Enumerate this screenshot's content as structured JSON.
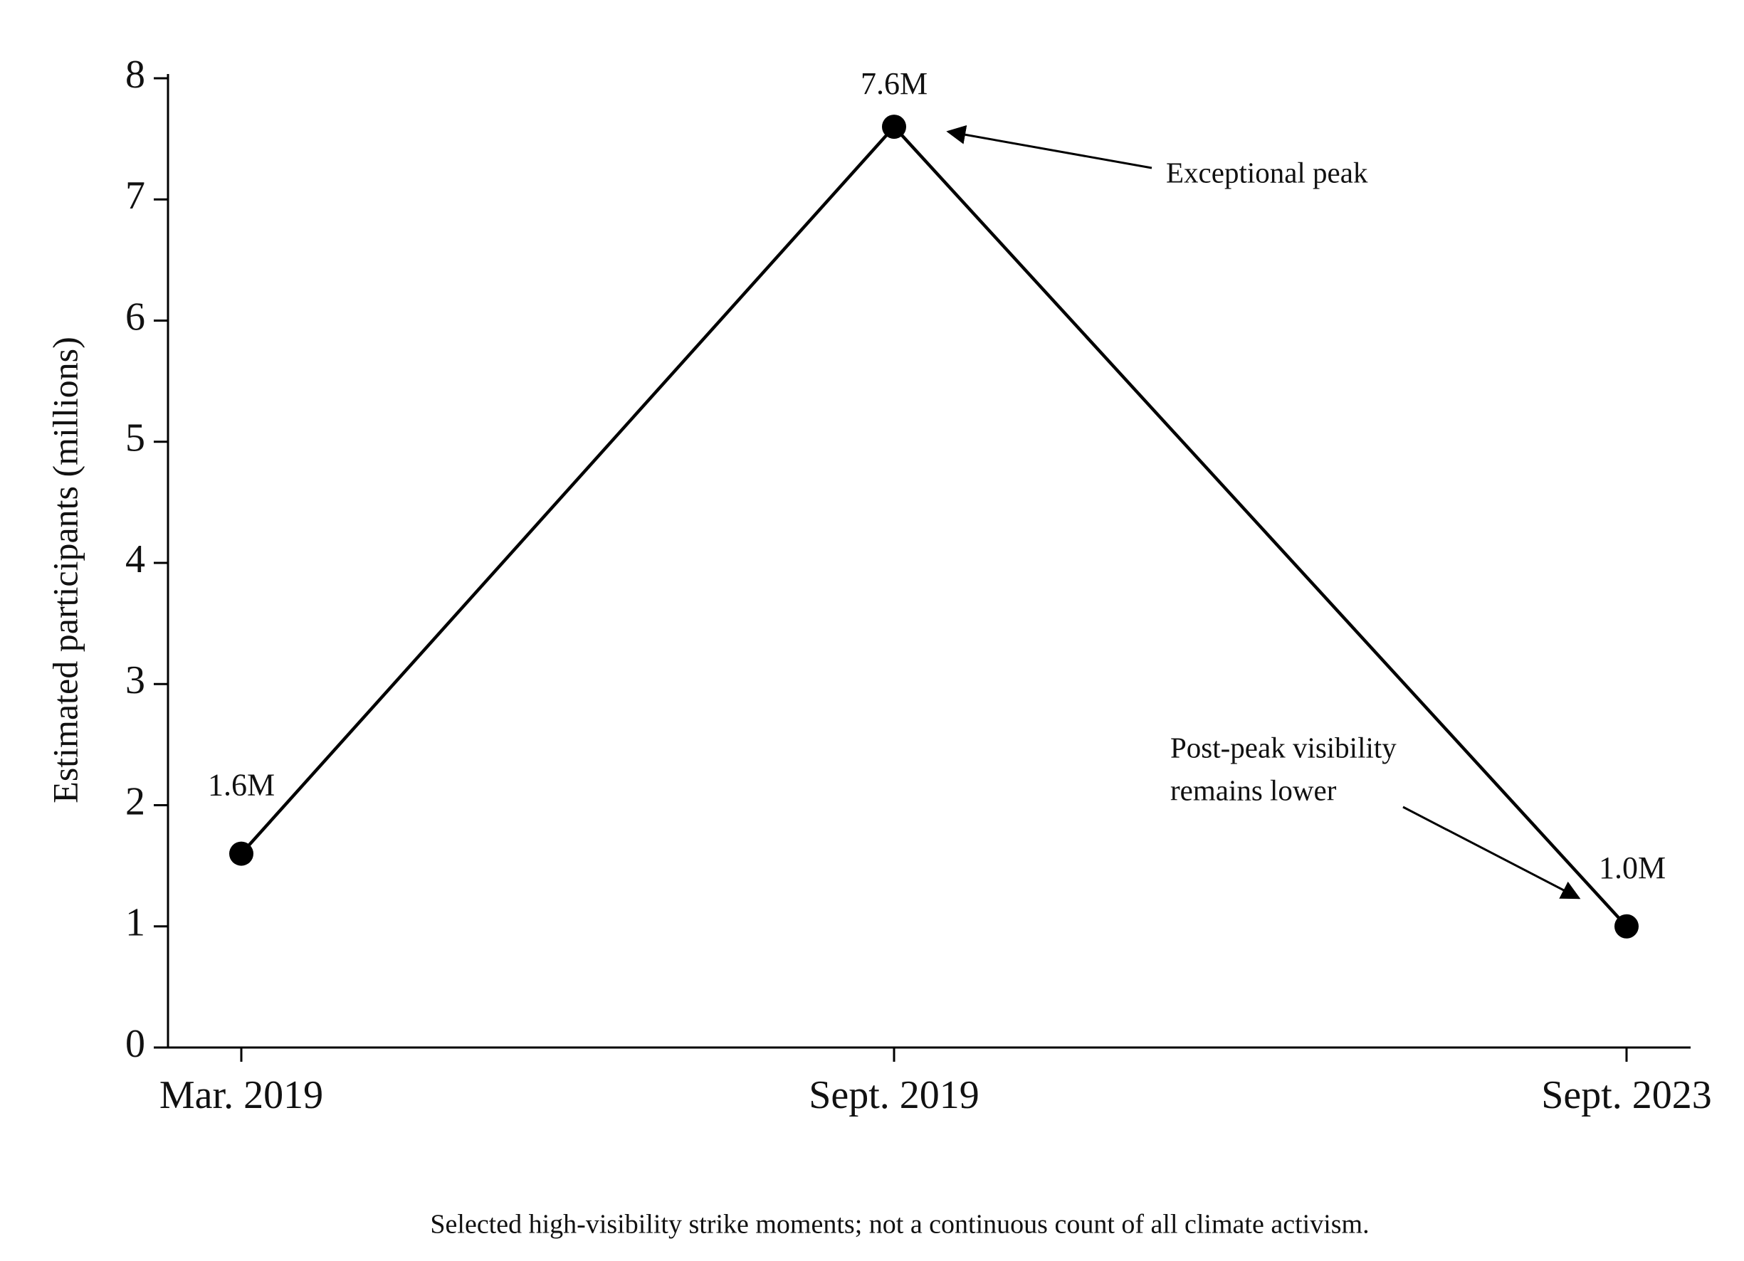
{
  "chart_data": {
    "type": "line",
    "categories": [
      "Mar. 2019",
      "Sept. 2019",
      "Sept. 2023"
    ],
    "series": [
      {
        "name": "Estimated participants",
        "color": "#000000",
        "values": [
          1.6,
          7.6,
          1.0
        ],
        "value_labels": [
          "1.6M",
          "7.6M",
          "1.0M"
        ]
      }
    ],
    "ylabel": "Estimated participants (millions)",
    "ylim": [
      0,
      8
    ],
    "yticks": [
      0,
      1,
      2,
      3,
      4,
      5,
      6,
      7,
      8
    ],
    "annotations": [
      [
        "Exceptional peak"
      ],
      [
        "Post-peak visibility",
        "remains lower"
      ]
    ],
    "note": "Selected high-visibility strike moments; not a continuous count of all climate activism."
  }
}
